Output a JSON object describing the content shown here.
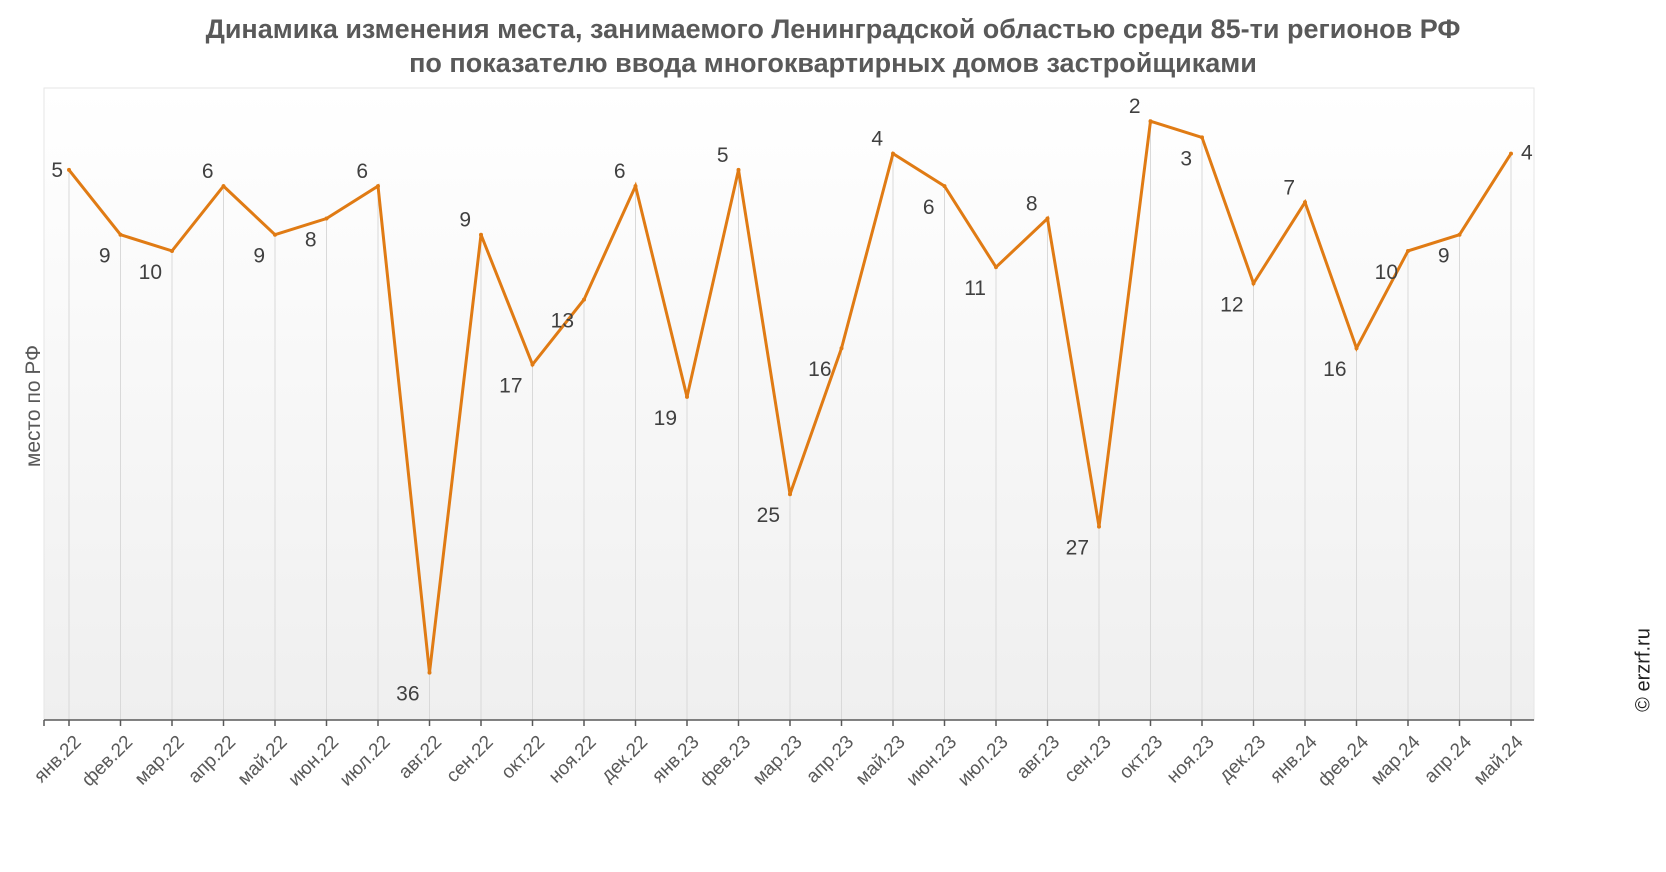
{
  "title_line1": "Динамика изменения места, занимаемого Ленинградской областью среди 85-ти регионов РФ",
  "title_line2": "по показателю ввода многоквартирных домов застройщиками",
  "watermark": "© erzrf.ru",
  "colors": {
    "line": "#E07B14",
    "grid": "#d9d9d9",
    "axis": "#595959",
    "label": "#404040"
  },
  "chart_data": {
    "type": "line",
    "title": "Динамика изменения места, занимаемого Ленинградской областью среди 85-ти регионов РФ по показателю ввода многоквартирных домов застройщиками",
    "xlabel": "",
    "ylabel": "место по РФ",
    "y_inverted": true,
    "ylim": [
      1,
      40
    ],
    "grid": "vertical",
    "categories": [
      "янв.22",
      "фев.22",
      "мар.22",
      "апр.22",
      "май.22",
      "июн.22",
      "июл.22",
      "авг.22",
      "сен.22",
      "окт.22",
      "ноя.22",
      "дек.22",
      "янв.23",
      "фев.23",
      "мар.23",
      "апр.23",
      "май.23",
      "июн.23",
      "июл.23",
      "авг.23",
      "сен.23",
      "окт.23",
      "ноя.23",
      "дек.23",
      "янв.24",
      "фев.24",
      "мар.24",
      "апр.24",
      "май.24"
    ],
    "series": [
      {
        "values": [
          5,
          9,
          10,
          6,
          9,
          8,
          6,
          36,
          9,
          17,
          13,
          6,
          19,
          5,
          25,
          16,
          4,
          6,
          11,
          8,
          27,
          2,
          3,
          12,
          7,
          16,
          10,
          9,
          4
        ]
      }
    ]
  }
}
